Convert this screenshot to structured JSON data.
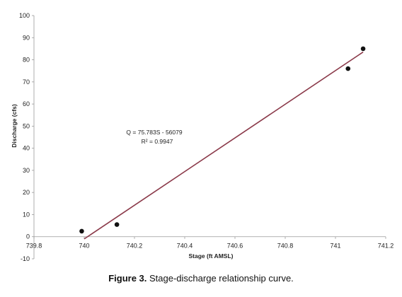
{
  "chart_data": {
    "type": "scatter",
    "title": "",
    "xlabel": "Stage (ft AMSL)",
    "ylabel": "Discharge (cfs)",
    "xlim": [
      739.8,
      741.2
    ],
    "ylim": [
      -10,
      100
    ],
    "x_ticks": [
      "739.8",
      "740",
      "740.2",
      "740.4",
      "740.6",
      "740.8",
      "741",
      "741.2"
    ],
    "y_ticks": [
      "-10",
      "0",
      "10",
      "20",
      "30",
      "40",
      "50",
      "60",
      "70",
      "80",
      "90",
      "100"
    ],
    "grid": false,
    "legend": "none",
    "series": [
      {
        "points": [
          {
            "x": 739.99,
            "y": 2.5
          },
          {
            "x": 740.13,
            "y": 5.5
          },
          {
            "x": 741.05,
            "y": 76
          },
          {
            "x": 741.11,
            "y": 85
          }
        ]
      }
    ],
    "trendline": {
      "x_start": 740.0,
      "y_start": -1,
      "x_end": 741.11,
      "y_end": 83.5,
      "color": "#8b3a4a"
    },
    "equation": "Q = 75.783S - 56079",
    "r_squared": "R² = 0.9947",
    "marker_color": "#111111",
    "axis_color": "#999999"
  },
  "caption": {
    "label": "Figure 3.",
    "text": " Stage-discharge relationship curve."
  }
}
